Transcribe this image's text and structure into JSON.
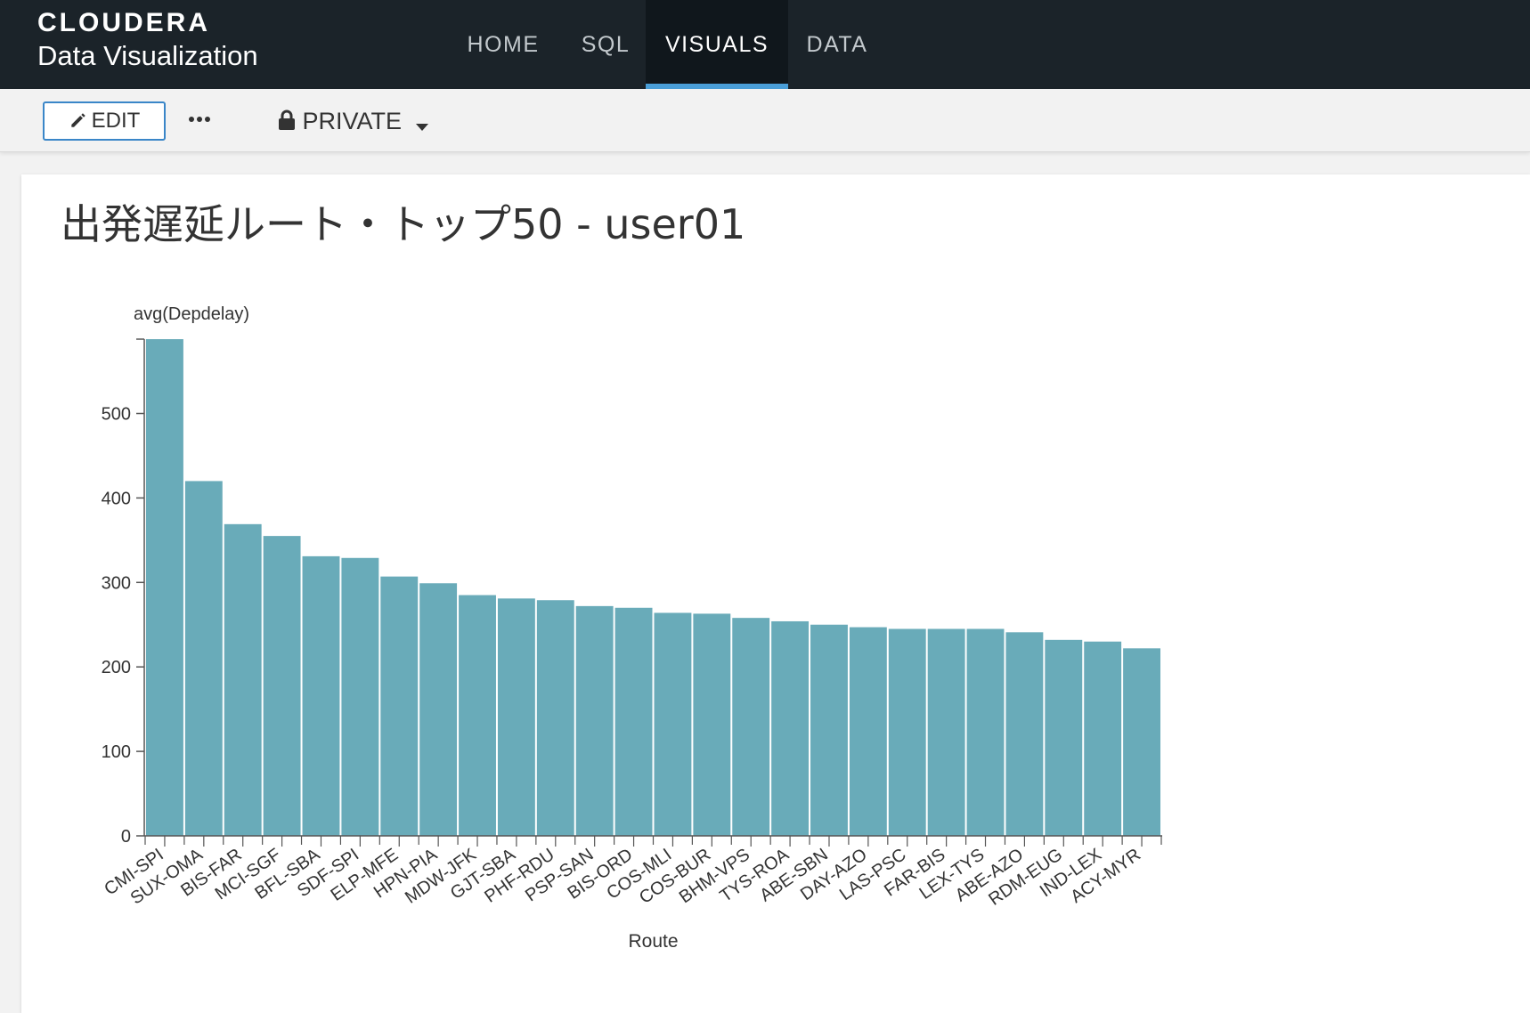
{
  "brand": {
    "name": "CLOUDERA",
    "product": "Data Visualization"
  },
  "nav": {
    "items": [
      {
        "label": "HOME",
        "active": false
      },
      {
        "label": "SQL",
        "active": false
      },
      {
        "label": "VISUALS",
        "active": true
      },
      {
        "label": "DATA",
        "active": false
      }
    ]
  },
  "toolbar": {
    "edit_label": "EDIT",
    "more_icon": "more-horizontal-icon",
    "privacy_label": "PRIVATE",
    "privacy_icon": "lock-icon"
  },
  "colors": {
    "accent": "#4a9fd8",
    "bar": "#69abb9",
    "topbar": "#1b2329"
  },
  "panel": {
    "title": "出発遅延ルート・トップ50 - user01"
  },
  "chart_data": {
    "type": "bar",
    "title": "出発遅延ルート・トップ50 - user01",
    "xlabel": "Route",
    "ylabel": "avg(Depdelay)",
    "ylim": [
      0,
      588
    ],
    "yticks": [
      0,
      100,
      200,
      300,
      400,
      500
    ],
    "grid": false,
    "categories": [
      "CMI-SPI",
      "SUX-OMA",
      "BIS-FAR",
      "MCI-SGF",
      "BFL-SBA",
      "SDF-SPI",
      "ELP-MFE",
      "HPN-PIA",
      "MDW-JFK",
      "GJT-SBA",
      "PHF-RDU",
      "PSP-SAN",
      "BIS-ORD",
      "COS-MLI",
      "COS-BUR",
      "BHM-VPS",
      "TYS-ROA",
      "ABE-SBN",
      "DAY-AZO",
      "LAS-PSC",
      "FAR-BIS",
      "LEX-TYS",
      "ABE-AZO",
      "RDM-EUG",
      "IND-LEX",
      "ACY-MYR"
    ],
    "values": [
      588,
      420,
      369,
      355,
      331,
      329,
      307,
      299,
      285,
      281,
      279,
      272,
      270,
      264,
      263,
      258,
      254,
      250,
      247,
      245,
      245,
      245,
      241,
      232,
      230,
      222
    ]
  }
}
